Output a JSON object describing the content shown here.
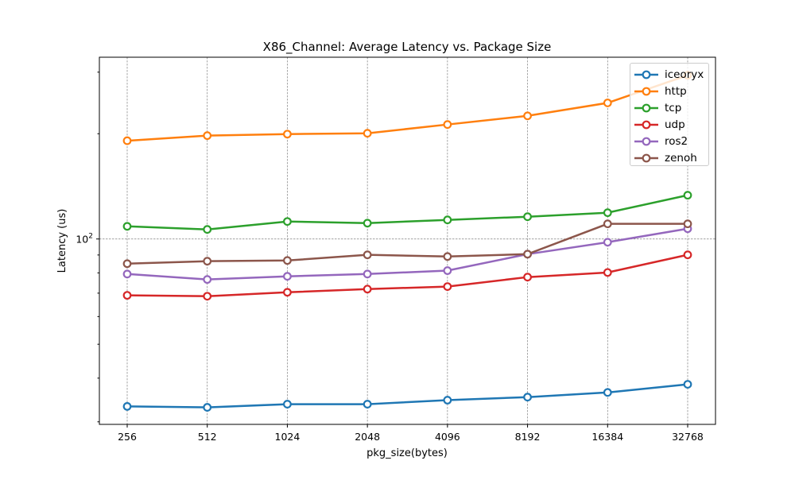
{
  "chart_data": {
    "type": "line",
    "title": "X86_Channel: Average Latency vs. Package Size",
    "xlabel": "pkg_size(bytes)",
    "ylabel": "Latency (us)",
    "yscale": "log",
    "ylim": [
      29.5,
      331
    ],
    "grid": true,
    "legend_position": "top-right",
    "categories": [
      "256",
      "512",
      "1024",
      "2048",
      "4096",
      "8192",
      "16384",
      "32768"
    ],
    "y_ticks": [
      {
        "value": 100,
        "label": "10",
        "exp": "2"
      }
    ],
    "y_minor_ticks": [
      30,
      40,
      50,
      60,
      70,
      80,
      90,
      200,
      300
    ],
    "series": [
      {
        "name": "iceoryx",
        "color": "#1f77b4",
        "values": [
          33.2,
          33.0,
          33.7,
          33.7,
          34.6,
          35.3,
          36.4,
          38.4
        ]
      },
      {
        "name": "http",
        "color": "#ff7f0e",
        "values": [
          191,
          197.5,
          199.5,
          200.6,
          212.5,
          225,
          245,
          294
        ]
      },
      {
        "name": "tcp",
        "color": "#2ca02c",
        "values": [
          108.7,
          106.5,
          112.2,
          111,
          113.4,
          115.8,
          118.9,
          133.4
        ]
      },
      {
        "name": "udp",
        "color": "#d62728",
        "values": [
          69,
          68.6,
          70.4,
          71.9,
          73.1,
          77.8,
          80.2,
          90.1
        ]
      },
      {
        "name": "ros2",
        "color": "#9467bd",
        "values": [
          79.4,
          76.6,
          78.2,
          79.4,
          81.2,
          90.5,
          97.9,
          107
        ]
      },
      {
        "name": "zenoh",
        "color": "#8c564b",
        "values": [
          85,
          86.4,
          86.8,
          90.1,
          89.1,
          90.5,
          110.5,
          110.5
        ]
      }
    ]
  }
}
